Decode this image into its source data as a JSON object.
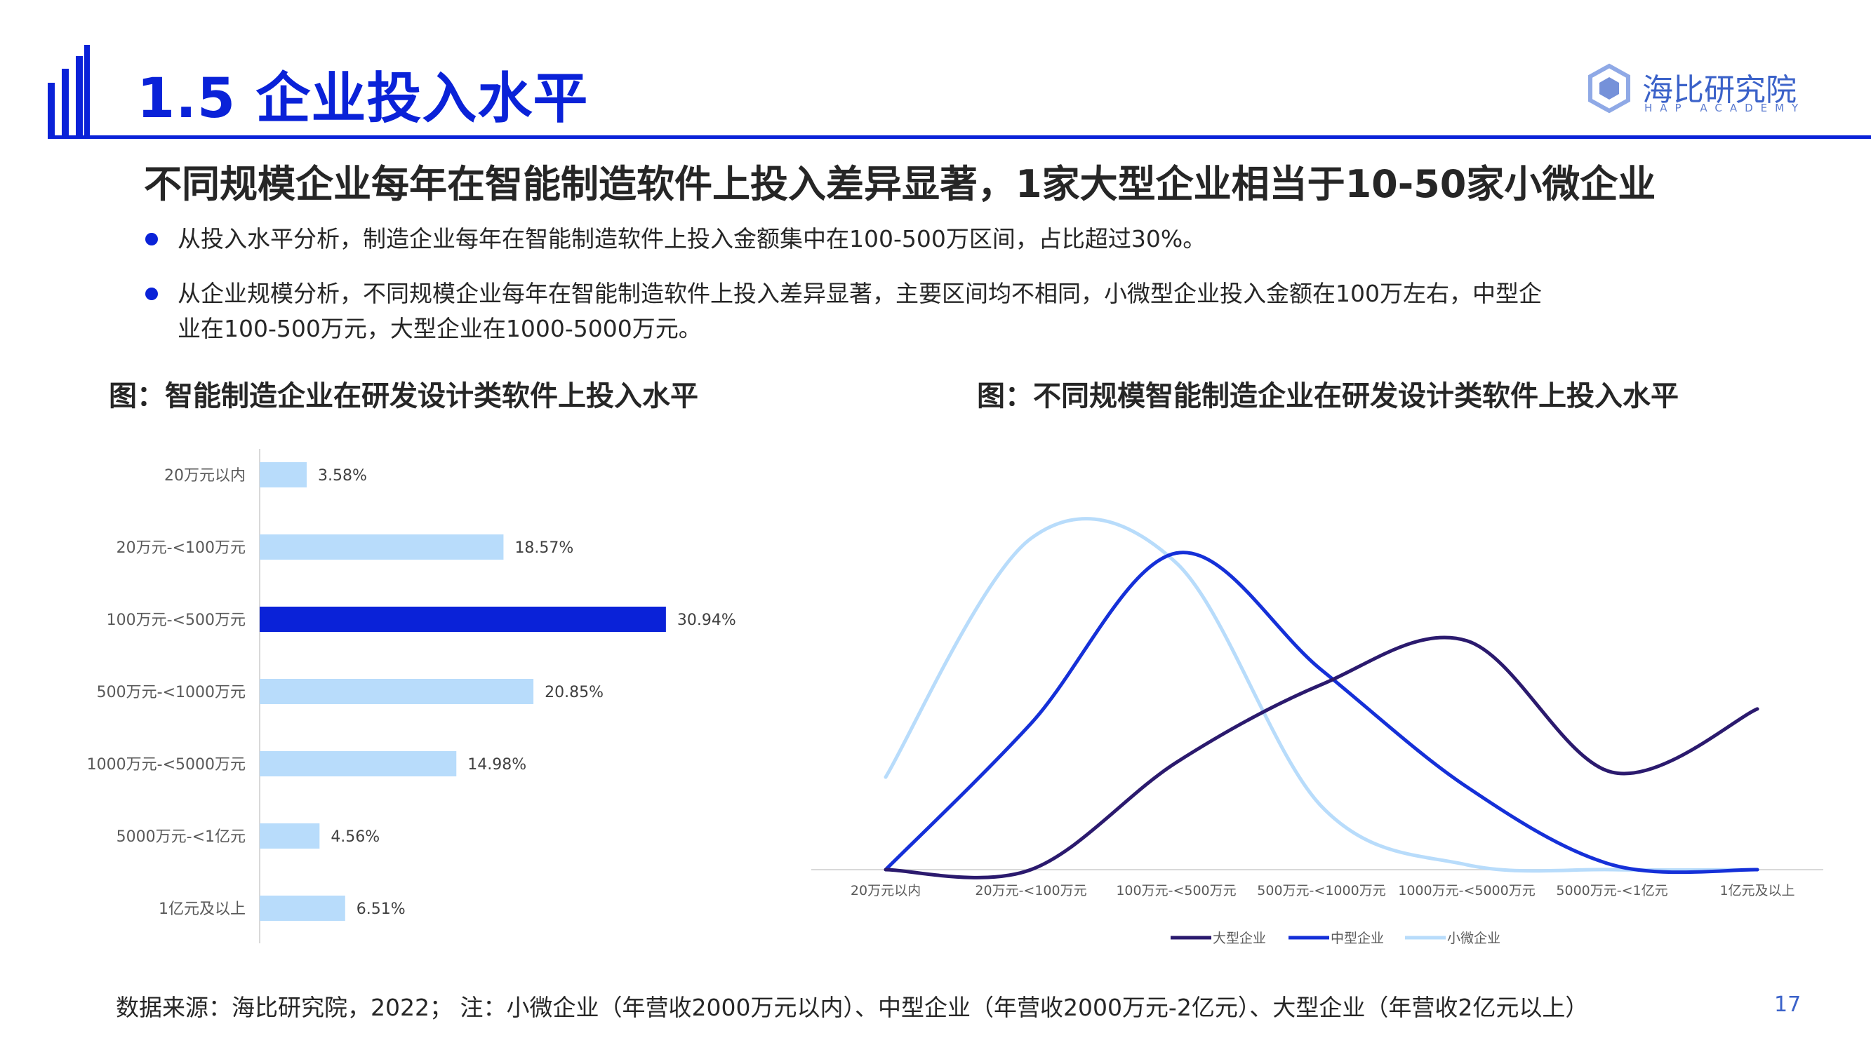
{
  "header": {
    "title": "1.5 企业投入水平",
    "logo_name": "海比研究院",
    "logo_sub": "HAP ACADEMY"
  },
  "headline": "不同规模企业每年在智能制造软件上投入差异显著，1家大型企业相当于10-50家小微企业",
  "bullets": [
    {
      "line1": "从投入水平分析，制造企业每年在智能制造软件上投入金额集中在100-500万区间，占比超过30%。",
      "line2": ""
    },
    {
      "line1": "从企业规模分析，不同规模企业每年在智能制造软件上投入差异显著，主要区间均不相同，小微型企业投入金额在100万左右，中型企",
      "line2": "业在100-500万元，大型企业在1000-5000万元。"
    }
  ],
  "colors": {
    "accent": "#0a22d8",
    "bar_light": "#b8dcfb",
    "bar_highlight": "#0a22d8",
    "series_large": "#2b1a6e",
    "series_mid": "#1530d8",
    "series_small": "#b8dcfb"
  },
  "chart_data": [
    {
      "type": "bar",
      "orientation": "horizontal",
      "title": "图：智能制造企业在研发设计类软件上投入水平",
      "categories": [
        "20万元以内",
        "20万元-<100万元",
        "100万元-<500万元",
        "500万元-<1000万元",
        "1000万元-<5000万元",
        "5000万元-<1亿元",
        "1亿元及以上"
      ],
      "values": [
        3.58,
        18.57,
        30.94,
        20.85,
        14.98,
        4.56,
        6.51
      ],
      "value_labels": [
        "3.58%",
        "18.57%",
        "30.94%",
        "20.85%",
        "14.98%",
        "4.56%",
        "6.51%"
      ],
      "highlight_index": 2,
      "xlim": [
        0,
        35
      ]
    },
    {
      "type": "line",
      "smooth": true,
      "title": "图：不同规模智能制造企业在研发设计类软件上投入水平",
      "categories": [
        "20万元以内",
        "20万元-<100万元",
        "100万元-<500万元",
        "500万元-<1000万元",
        "1000万元-<5000万元",
        "5000万元-<1亿元",
        "1亿元及以上"
      ],
      "series": [
        {
          "name": "大型企业",
          "values": [
            0,
            0,
            22,
            38,
            47,
            20,
            33
          ]
        },
        {
          "name": "中型企业",
          "values": [
            0,
            30,
            65,
            41,
            17,
            1,
            0
          ]
        },
        {
          "name": "小微企业",
          "values": [
            19,
            68,
            63,
            13,
            1,
            0,
            0
          ]
        }
      ],
      "ylim": [
        0,
        72
      ],
      "legend_position": "bottom"
    }
  ],
  "footer": {
    "source": "数据来源：海比研究院，2022；  注：小微企业（年营收2000万元以内）、中型企业（年营收2000万元-2亿元）、大型企业（年营收2亿元以上）",
    "page": "17"
  }
}
